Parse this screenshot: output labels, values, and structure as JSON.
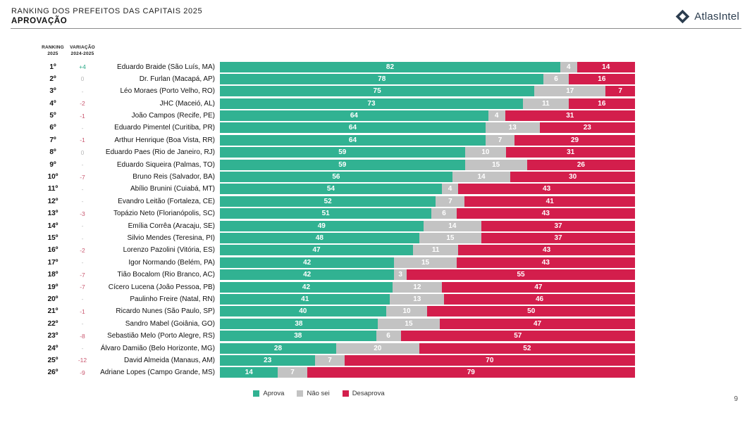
{
  "header": {
    "title": "RANKING DOS PREFEITOS DAS CAPITAIS 2025",
    "subtitle": "APROVAÇÃO",
    "brand": "AtlasIntel"
  },
  "table_headers": {
    "ranking_line1": "RANKING",
    "ranking_line2": "2025",
    "variation_line1": "VARIAÇÃO",
    "variation_line2": "2024-2025"
  },
  "colors": {
    "aprova": "#31b292",
    "nao_sei": "#c3c3c3",
    "desaprova": "#d31e4c",
    "variation_up": "#2aa887",
    "variation_down": "#c9566e",
    "variation_neutral": "#b8b8b8",
    "brand_navy": "#2c3d4f"
  },
  "legend": [
    {
      "label": "Aprova",
      "key": "aprova"
    },
    {
      "label": "Não sei",
      "key": "nao_sei"
    },
    {
      "label": "Desaprova",
      "key": "desaprova"
    }
  ],
  "page_number": "9",
  "chart_data": {
    "type": "bar",
    "stacked": true,
    "orientation": "horizontal",
    "title": "Ranking dos Prefeitos das Capitais 2025 — Aprovação",
    "series_names": [
      "Aprova",
      "Não sei",
      "Desaprova"
    ],
    "x_max": 100,
    "rows": [
      {
        "rank": "1º",
        "variation": "+4",
        "variation_dir": "up",
        "name": "Eduardo Braide (São Luís, MA)",
        "values": [
          82,
          4,
          14
        ]
      },
      {
        "rank": "2º",
        "variation": "0",
        "variation_dir": "zero",
        "name": "Dr. Furlan (Macapá, AP)",
        "values": [
          78,
          6,
          16
        ]
      },
      {
        "rank": "3º",
        "variation": "-",
        "variation_dir": "none",
        "name": "Léo Moraes (Porto Velho, RO)",
        "values": [
          75,
          17,
          7
        ]
      },
      {
        "rank": "4º",
        "variation": "-2",
        "variation_dir": "down",
        "name": "JHC (Maceió, AL)",
        "values": [
          73,
          11,
          16
        ]
      },
      {
        "rank": "5º",
        "variation": "-1",
        "variation_dir": "down",
        "name": "João Campos (Recife, PE)",
        "values": [
          64,
          4,
          31
        ]
      },
      {
        "rank": "6º",
        "variation": "-",
        "variation_dir": "none",
        "name": "Eduardo Pimentel (Curitiba, PR)",
        "values": [
          64,
          13,
          23
        ]
      },
      {
        "rank": "7º",
        "variation": "-1",
        "variation_dir": "down",
        "name": "Arthur Henrique (Boa Vista, RR)",
        "values": [
          64,
          7,
          29
        ]
      },
      {
        "rank": "8º",
        "variation": "0",
        "variation_dir": "zero",
        "name": "Eduardo Paes (Rio de Janeiro, RJ)",
        "values": [
          59,
          10,
          31
        ]
      },
      {
        "rank": "9º",
        "variation": "-",
        "variation_dir": "none",
        "name": "Eduardo Siqueira (Palmas, TO)",
        "values": [
          59,
          15,
          26
        ]
      },
      {
        "rank": "10º",
        "variation": "-7",
        "variation_dir": "down",
        "name": "Bruno Reis (Salvador, BA)",
        "values": [
          56,
          14,
          30
        ]
      },
      {
        "rank": "11º",
        "variation": "-",
        "variation_dir": "none",
        "name": "Abílio Brunini (Cuiabá, MT)",
        "values": [
          54,
          4,
          43
        ]
      },
      {
        "rank": "12º",
        "variation": "-",
        "variation_dir": "none",
        "name": "Evandro Leitão (Fortaleza, CE)",
        "values": [
          52,
          7,
          41
        ]
      },
      {
        "rank": "13º",
        "variation": "-3",
        "variation_dir": "down",
        "name": "Topázio Neto (Florianópolis, SC)",
        "values": [
          51,
          6,
          43
        ]
      },
      {
        "rank": "14º",
        "variation": "-",
        "variation_dir": "none",
        "name": "Emília Corrêa (Aracaju, SE)",
        "values": [
          49,
          14,
          37
        ]
      },
      {
        "rank": "15º",
        "variation": "-",
        "variation_dir": "none",
        "name": "Silvio Mendes (Teresina, PI)",
        "values": [
          48,
          15,
          37
        ]
      },
      {
        "rank": "16º",
        "variation": "-2",
        "variation_dir": "down",
        "name": "Lorenzo Pazolini (Vitória, ES)",
        "values": [
          47,
          11,
          43
        ]
      },
      {
        "rank": "17º",
        "variation": "-",
        "variation_dir": "none",
        "name": "Igor Normando (Belém, PA)",
        "values": [
          42,
          15,
          43
        ]
      },
      {
        "rank": "18º",
        "variation": "-7",
        "variation_dir": "down",
        "name": "Tião Bocalom (Rio Branco, AC)",
        "values": [
          42,
          3,
          55
        ]
      },
      {
        "rank": "19º",
        "variation": "-7",
        "variation_dir": "down",
        "name": "Cícero Lucena (João Pessoa, PB)",
        "values": [
          42,
          12,
          47
        ]
      },
      {
        "rank": "20º",
        "variation": "-",
        "variation_dir": "none",
        "name": "Paulinho Freire (Natal, RN)",
        "values": [
          41,
          13,
          46
        ]
      },
      {
        "rank": "21º",
        "variation": "-1",
        "variation_dir": "down",
        "name": "Ricardo Nunes (São Paulo, SP)",
        "values": [
          40,
          10,
          50
        ]
      },
      {
        "rank": "22º",
        "variation": "-",
        "variation_dir": "none",
        "name": "Sandro Mabel (Goiânia, GO)",
        "values": [
          38,
          15,
          47
        ]
      },
      {
        "rank": "23º",
        "variation": "-8",
        "variation_dir": "down",
        "name": "Sebastião Melo (Porto Alegre, RS)",
        "values": [
          38,
          6,
          57
        ]
      },
      {
        "rank": "24º",
        "variation": "-",
        "variation_dir": "none",
        "name": "Álvaro Damião (Belo Horizonte, MG)",
        "values": [
          28,
          20,
          52
        ]
      },
      {
        "rank": "25º",
        "variation": "-12",
        "variation_dir": "down",
        "name": "David Almeida (Manaus, AM)",
        "values": [
          23,
          7,
          70
        ]
      },
      {
        "rank": "26º",
        "variation": "-9",
        "variation_dir": "down",
        "name": "Adriane Lopes (Campo Grande, MS)",
        "values": [
          14,
          7,
          79
        ]
      }
    ]
  }
}
